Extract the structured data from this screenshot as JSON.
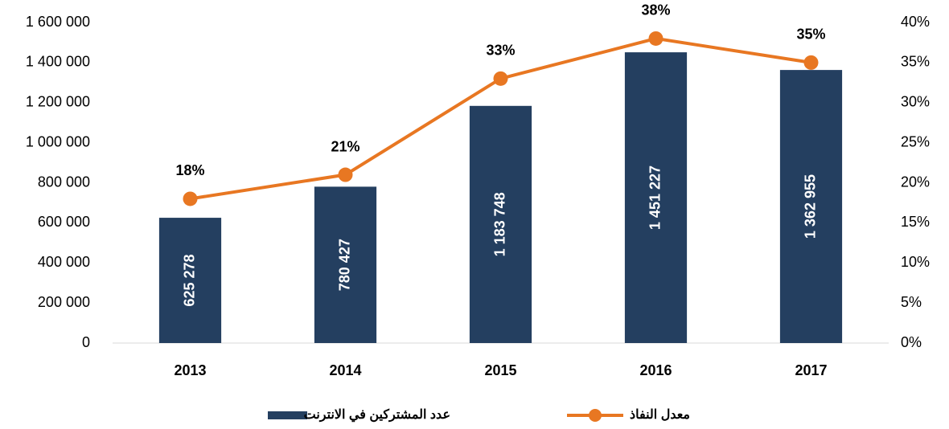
{
  "chart_data": {
    "type": "bar",
    "categories": [
      "2013",
      "2014",
      "2015",
      "2016",
      "2017"
    ],
    "series": [
      {
        "name": "عدد المشتركين في الانترنت",
        "type": "bar",
        "color": "#243f60",
        "values": [
          625278,
          780427,
          1183748,
          1451227,
          1362955
        ],
        "value_labels": [
          "625 278",
          "780 427",
          "1 183 748",
          "1 451 227",
          "1 362 955"
        ]
      },
      {
        "name": "معدل النفاذ",
        "type": "line",
        "axis": "y2",
        "color": "#e87722",
        "values": [
          18,
          21,
          33,
          38,
          35
        ],
        "value_labels": [
          "18%",
          "21%",
          "33%",
          "38%",
          "35%"
        ]
      }
    ],
    "ylim": [
      0,
      1600000
    ],
    "yticks": [
      0,
      {
        "value": 200000,
        "label": "200 000"
      },
      {
        "value": 400000,
        "label": "400 000"
      },
      {
        "value": 600000,
        "label": "600 000"
      },
      {
        "value": 800000,
        "label": "800 000"
      },
      {
        "value": 1000000,
        "label": "1 000 000"
      },
      {
        "value": 1200000,
        "label": "1 200 000"
      },
      {
        "value": 1400000,
        "label": "1 400 000"
      },
      {
        "value": 1600000,
        "label": "1 600 000"
      }
    ],
    "y2lim": [
      0,
      40
    ],
    "y2ticks": [
      {
        "value": 0,
        "label": "0%"
      },
      {
        "value": 5,
        "label": "5%"
      },
      {
        "value": 10,
        "label": "10%"
      },
      {
        "value": 15,
        "label": "15%"
      },
      {
        "value": 20,
        "label": "20%"
      },
      {
        "value": 25,
        "label": "25%"
      },
      {
        "value": 30,
        "label": "30%"
      },
      {
        "value": 35,
        "label": "35%"
      },
      {
        "value": 40,
        "label": "40%"
      }
    ],
    "grid": false
  }
}
